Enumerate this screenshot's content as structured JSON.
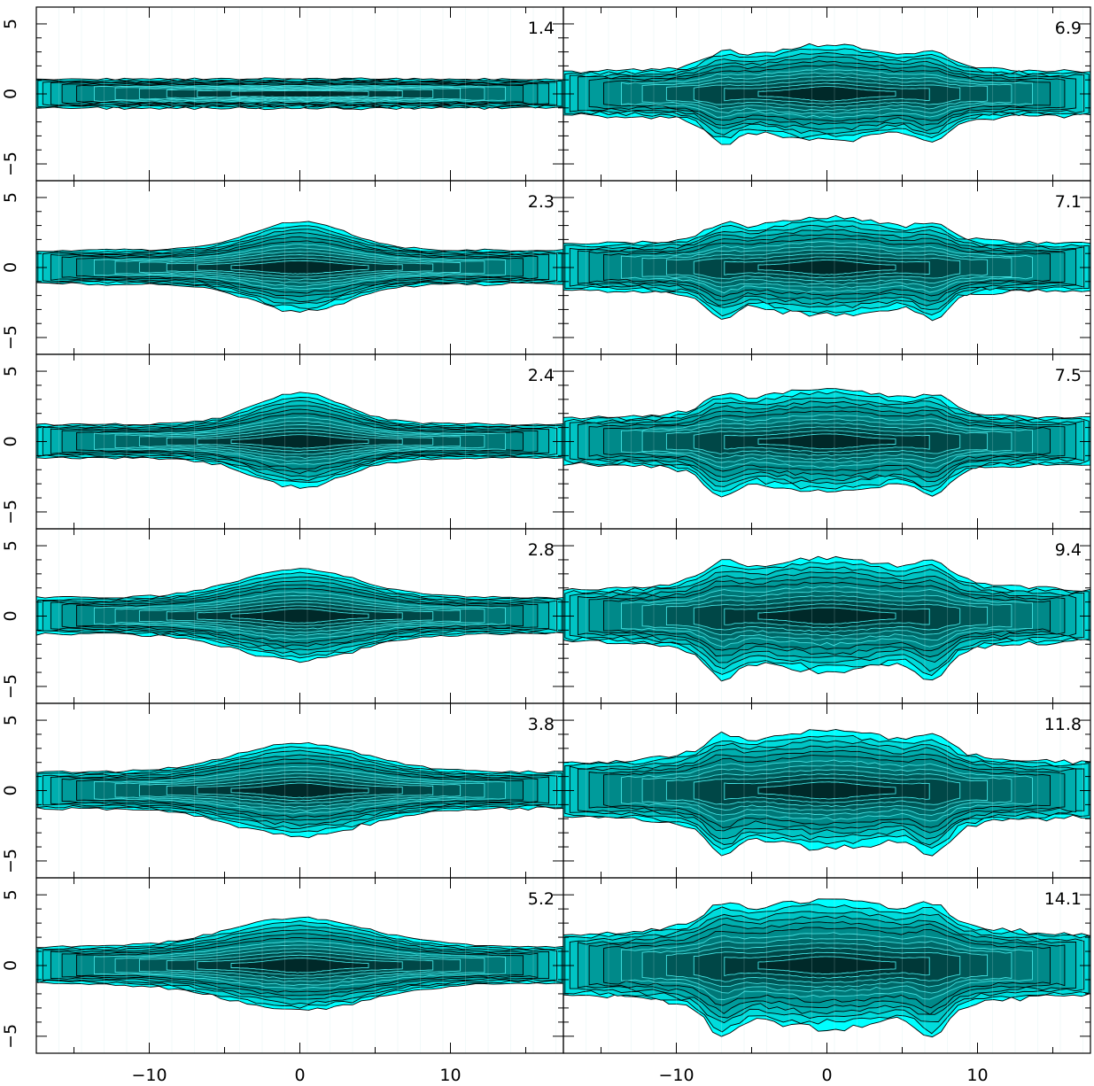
{
  "figure": {
    "background": "#ffffff"
  },
  "chart_data": {
    "type": "heatmap",
    "layout": "6 rows x 2 columns of contour panels sharing axes",
    "x_ticks": [
      -10,
      0,
      10
    ],
    "x_tick_labels": [
      "−10",
      "0",
      "10"
    ],
    "y_ticks": [
      -5,
      0,
      5
    ],
    "y_tick_labels": [
      "−5",
      "0",
      "5"
    ],
    "xlim": [
      -17.5,
      17.5
    ],
    "ylim": [
      -6.2,
      6.2
    ],
    "grid": true,
    "contour_levels": 12,
    "colors": {
      "low": "#00ffff",
      "high": "#001b1b",
      "contour_line_outer": "#000000",
      "contour_line_inner": "#40e0e0",
      "grid": "#bfe6e6"
    },
    "panels": [
      {
        "label": "1.4",
        "column": 0,
        "row": 0,
        "thickness": 0.55,
        "bulge": 0.0,
        "bulge_width": 4.0,
        "core_width": 5.5,
        "core_height": 0.45,
        "flare": 0.0,
        "wings": 0.0
      },
      {
        "label": "2.3",
        "column": 0,
        "row": 1,
        "thickness": 0.65,
        "bulge": 0.55,
        "bulge_width": 4.5,
        "core_width": 2.2,
        "core_height": 0.8,
        "flare": 0.0,
        "wings": 0.0
      },
      {
        "label": "2.4",
        "column": 0,
        "row": 2,
        "thickness": 0.65,
        "bulge": 0.6,
        "bulge_width": 4.2,
        "core_width": 2.0,
        "core_height": 0.8,
        "flare": 0.0,
        "wings": 0.0
      },
      {
        "label": "2.8",
        "column": 0,
        "row": 3,
        "thickness": 0.7,
        "bulge": 0.55,
        "bulge_width": 5.5,
        "core_width": 1.8,
        "core_height": 0.9,
        "flare": 0.0,
        "wings": 0.0
      },
      {
        "label": "3.8",
        "column": 0,
        "row": 4,
        "thickness": 0.7,
        "bulge": 0.55,
        "bulge_width": 6.0,
        "core_width": 1.8,
        "core_height": 0.9,
        "flare": 0.0,
        "wings": 0.0
      },
      {
        "label": "5.2",
        "column": 0,
        "row": 5,
        "thickness": 0.7,
        "bulge": 0.55,
        "bulge_width": 6.5,
        "core_width": 1.8,
        "core_height": 0.9,
        "flare": 0.0,
        "wings": 0.0
      },
      {
        "label": "6.9",
        "column": 1,
        "row": 0,
        "thickness": 0.85,
        "bulge": 0.5,
        "bulge_width": 7.0,
        "core_width": 1.8,
        "core_height": 0.9,
        "flare": 0.6,
        "wings": 0.5
      },
      {
        "label": "7.1",
        "column": 1,
        "row": 1,
        "thickness": 0.9,
        "bulge": 0.5,
        "bulge_width": 7.0,
        "core_width": 1.8,
        "core_height": 0.9,
        "flare": 0.65,
        "wings": 0.5
      },
      {
        "label": "7.5",
        "column": 1,
        "row": 2,
        "thickness": 0.9,
        "bulge": 0.55,
        "bulge_width": 7.5,
        "core_width": 1.8,
        "core_height": 0.9,
        "flare": 0.7,
        "wings": 0.55
      },
      {
        "label": "9.4",
        "column": 1,
        "row": 3,
        "thickness": 1.0,
        "bulge": 0.6,
        "bulge_width": 8.0,
        "core_width": 2.0,
        "core_height": 1.0,
        "flare": 0.8,
        "wings": 0.6
      },
      {
        "label": "11.8",
        "column": 1,
        "row": 4,
        "thickness": 1.05,
        "bulge": 0.6,
        "bulge_width": 8.0,
        "core_width": 2.0,
        "core_height": 1.0,
        "flare": 0.8,
        "wings": 0.65
      },
      {
        "label": "14.1",
        "column": 1,
        "row": 5,
        "thickness": 1.15,
        "bulge": 0.65,
        "bulge_width": 8.5,
        "core_width": 2.0,
        "core_height": 1.0,
        "flare": 0.85,
        "wings": 0.7
      }
    ]
  }
}
